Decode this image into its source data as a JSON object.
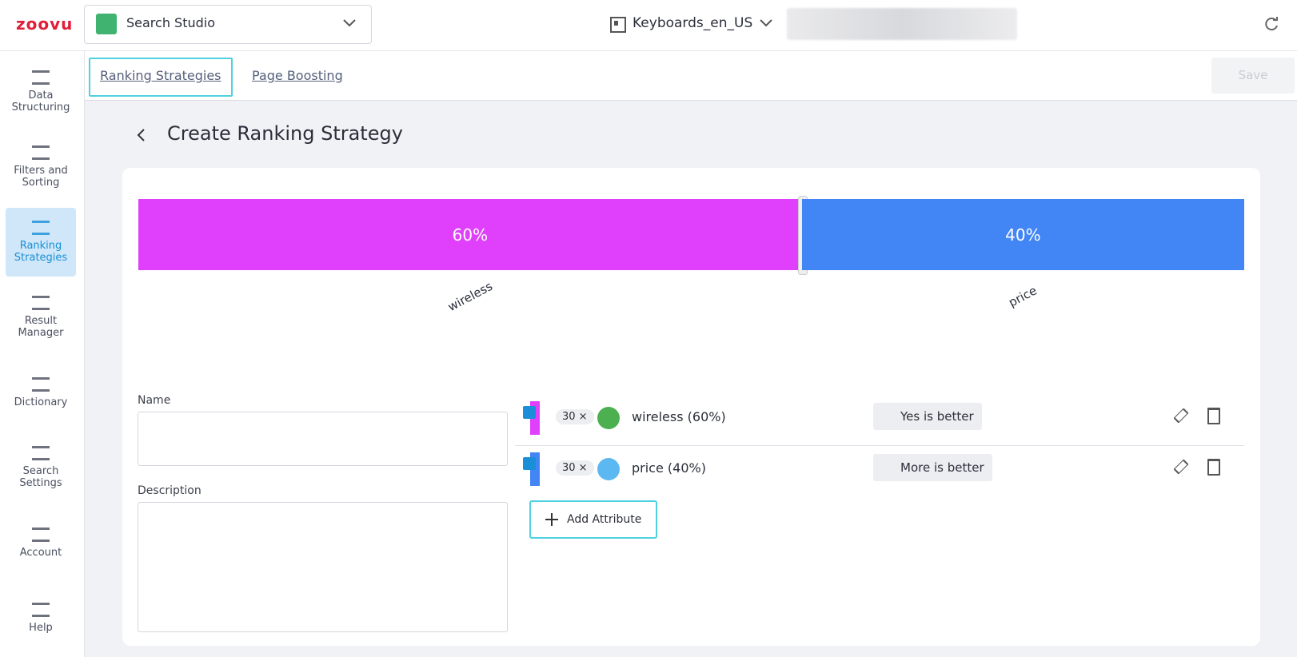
{
  "header": {
    "logo": "zoovu",
    "app": "Search Studio",
    "project": "Keyboards_en_US"
  },
  "sidebar": [
    {
      "label": "Data Structuring"
    },
    {
      "label": "Filters and Sorting"
    },
    {
      "label": "Ranking Strategies",
      "selected": true
    },
    {
      "label": "Result Manager"
    },
    {
      "label": "Dictionary"
    },
    {
      "label": "Search Settings"
    },
    {
      "label": "Account"
    },
    {
      "label": "Help"
    }
  ],
  "tabs": [
    "Ranking Strategies",
    "Page Boosting"
  ],
  "save": "Save",
  "page_title": "Create Ranking Strategy",
  "weights": {
    "segments": [
      {
        "name": "wireless",
        "value": 60,
        "label": "60%",
        "color": "#e040fb"
      },
      {
        "name": "price",
        "value": 40,
        "label": "40%",
        "color": "#4285f4"
      }
    ]
  },
  "form": {
    "name_label": "Name",
    "description_label": "Description"
  },
  "attributes": [
    {
      "multiplier": "30 ×",
      "name": "wireless (60%)",
      "preference": "Yes is better",
      "color": "#e040fb"
    },
    {
      "multiplier": "30 ×",
      "name": "price (40%)",
      "preference": "More is better",
      "color": "#4285f4"
    }
  ],
  "add_button": "Add Attribute"
}
